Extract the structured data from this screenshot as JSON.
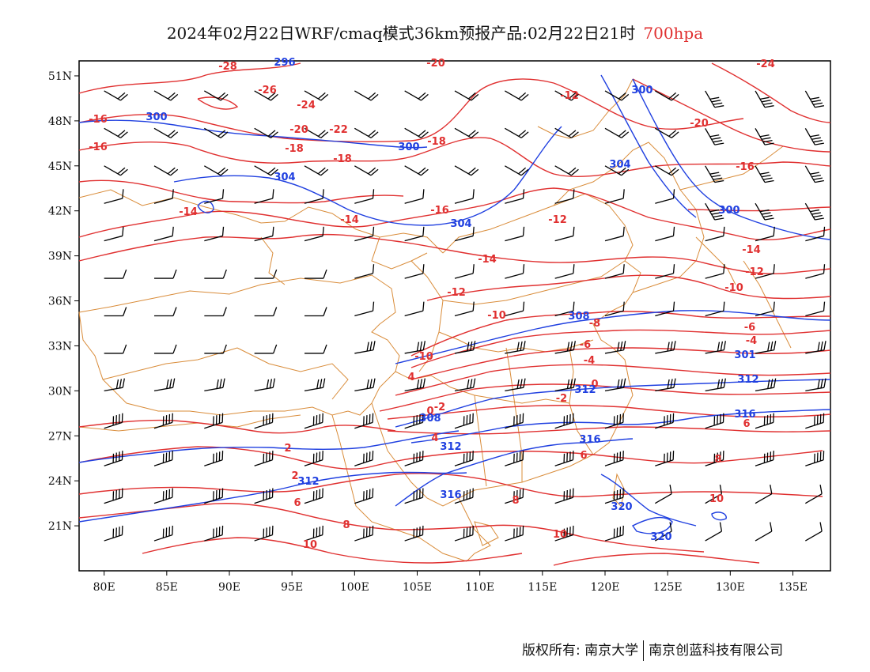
{
  "header": {
    "title": "2024年02月22日WRF/cmaq模式36km预报产品:02月22日21时",
    "level": "700hpa"
  },
  "footer": {
    "copyright": "版权所有: 南京大学",
    "company": "南京创蓝科技有限公司"
  },
  "axes": {
    "lat_labels": [
      "51N",
      "48N",
      "45N",
      "42N",
      "39N",
      "36N",
      "33N",
      "30N",
      "27N",
      "24N",
      "21N"
    ],
    "lon_labels": [
      "80E",
      "85E",
      "90E",
      "95E",
      "100E",
      "105E",
      "110E",
      "115E",
      "120E",
      "125E",
      "130E",
      "135E"
    ]
  },
  "chart_data": {
    "type": "map",
    "lon_range": [
      78,
      138
    ],
    "lat_range": [
      18,
      52
    ],
    "temperature_labels": [
      "-28",
      "-26",
      "-24",
      "-22",
      "-20",
      "-20",
      "-18",
      "-18",
      "-18",
      "-16",
      "-16",
      "-16",
      "-14",
      "-14",
      "-14",
      "-12",
      "-12",
      "-12",
      "-10",
      "-10",
      "-10",
      "-8",
      "-6",
      "-6",
      "-4",
      "-4",
      "-2",
      "-2",
      "0",
      "0",
      "2",
      "2",
      "4",
      "4",
      "6",
      "6",
      "6",
      "8",
      "8",
      "8",
      "10",
      "10",
      "10",
      "-20",
      "-24",
      "-16",
      "-14",
      "-12"
    ],
    "height_labels": [
      "296",
      "300",
      "300",
      "300",
      "304",
      "304",
      "304",
      "308",
      "308",
      "312",
      "312",
      "312",
      "312",
      "316",
      "316",
      "316",
      "320",
      "320",
      "300",
      "301"
    ],
    "colors": {
      "temperature": "#e03030",
      "height": "#2040e0",
      "boundary": "#d98c3a",
      "wind": "#000000"
    }
  }
}
